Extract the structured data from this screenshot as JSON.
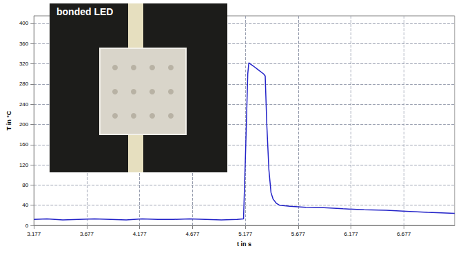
{
  "chart_data": {
    "type": "line",
    "x_label": "t in s",
    "y_label": "T in °C",
    "annotation": "bonded LED",
    "color": "#2323c8",
    "line_style": "solid",
    "grid": true,
    "x": [
      3.177,
      3.3,
      3.45,
      3.6,
      3.75,
      3.9,
      4.05,
      4.2,
      4.35,
      4.5,
      4.65,
      4.8,
      4.95,
      5.1,
      5.16,
      5.18,
      5.2,
      5.21,
      5.25,
      5.3,
      5.35,
      5.365,
      5.38,
      5.4,
      5.42,
      5.44,
      5.47,
      5.5,
      5.6,
      5.75,
      5.92,
      6.1,
      6.3,
      6.51,
      6.7,
      6.9,
      7.03,
      7.157
    ],
    "values": [
      12,
      13,
      11,
      12,
      13,
      12,
      11,
      13,
      12,
      12,
      13,
      12,
      11,
      12,
      13,
      150,
      300,
      322,
      316,
      308,
      300,
      296,
      200,
      110,
      65,
      52,
      44,
      40,
      38,
      36,
      35,
      33,
      31,
      30,
      28,
      26,
      25,
      24
    ],
    "xlim": [
      3.177,
      7.157
    ],
    "xticks": [
      3.177,
      3.677,
      4.177,
      4.677,
      5.177,
      5.677,
      6.177,
      6.677
    ],
    "ylim": [
      0,
      415
    ],
    "yticks": [
      0,
      40,
      80,
      120,
      160,
      200,
      240,
      280,
      320,
      360,
      400
    ]
  }
}
